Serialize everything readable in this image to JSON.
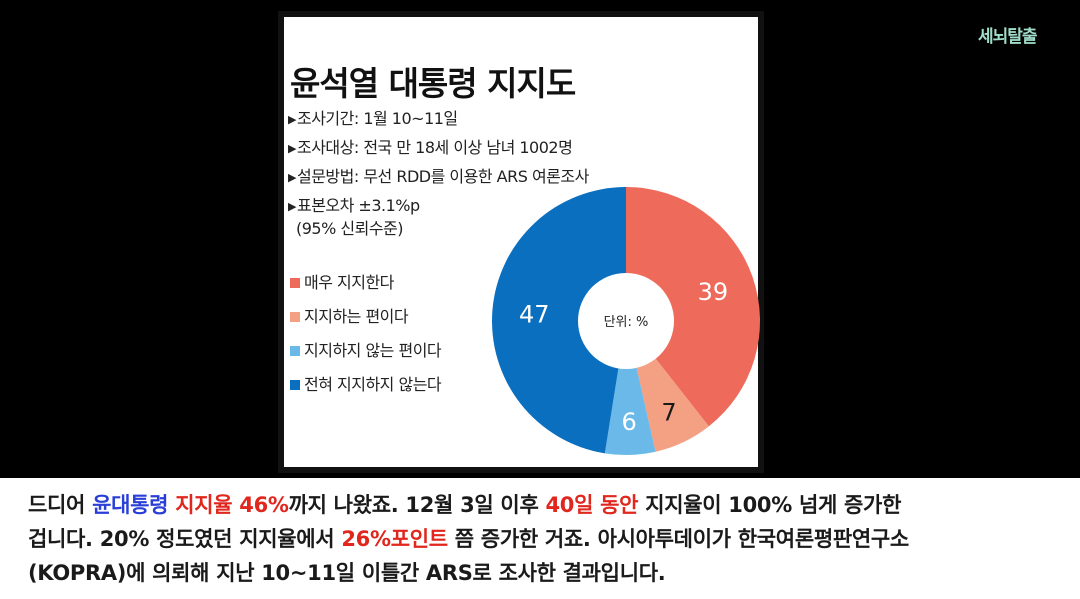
{
  "watermark": "세뇌탈출",
  "card": {
    "title": "윤석열 대통령 지지도",
    "info": [
      "조사기간: 1월 10~11일",
      "조사대상: 전국 만 18세 이상 남녀 1002명",
      "설문방법: 무선 RDD를 이용한 ARS 여론조사",
      "표본오차 ±3.1%p",
      "(95% 신뢰수준)"
    ],
    "arrow_glyph": "▶"
  },
  "chart_data": {
    "type": "pie",
    "style": "donut",
    "center_label": "단위: %",
    "legend_placement": "left",
    "slices": [
      {
        "label": "매우 지지한다",
        "value": 39,
        "color": "#ee6b5b"
      },
      {
        "label": "지지하는 편이다",
        "value": 7,
        "color": "#f3a083"
      },
      {
        "label": "지지하지 않는 편이다",
        "value": 6,
        "color": "#6ab9e8"
      },
      {
        "label": "전혀 지지하지 않는다",
        "value": 47,
        "color": "#0b6fc0"
      }
    ]
  },
  "caption": {
    "line1": {
      "p1": "드디어 ",
      "p2": "윤대통령",
      "p3": " ",
      "p4": "지지율 46%",
      "p5": "까지 나왔죠. 12월 3일 이후 ",
      "p6": "40일 동안",
      "p7": " 지지율이 100% 넘게 증가한"
    },
    "line2": {
      "p1": "겁니다. 20% 정도였던 지지율에서 ",
      "p2": "26%포인트",
      "p3": " 쯤 증가한 거죠. 아시아투데이가 한국여론평판연구소"
    },
    "line3": "(KOPRA)에 의뢰해 지난 10~11일 이틀간 ARS로 조사한 결과입니다."
  }
}
